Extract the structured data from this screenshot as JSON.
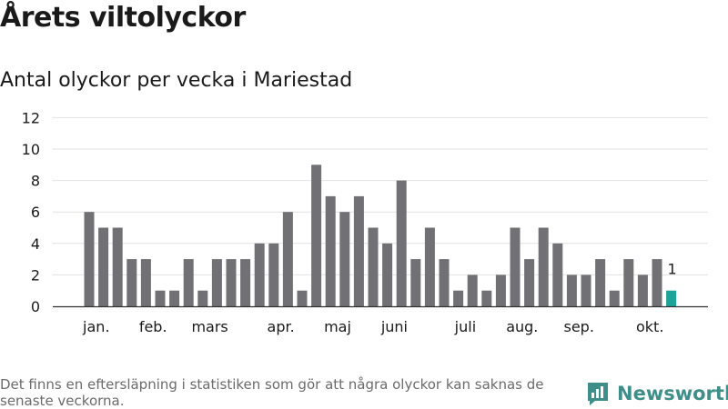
{
  "title": "Årets viltolyckor",
  "subtitle": "Antal olyckor per vecka i Mariestad",
  "footnote": "Det finns en eftersläpning i statistiken som gör att några olyckor kan saknas de senaste veckorna.",
  "brand": {
    "name": "Newsworthy",
    "color": "#3e8f89"
  },
  "colors": {
    "bar": "#717075",
    "highlight": "#1ea39a",
    "grid": "#e2e2e2",
    "axis": "#333333"
  },
  "chart_data": {
    "type": "bar",
    "title": "Antal olyckor per vecka i Mariestad",
    "xlabel": "",
    "ylabel": "",
    "ylim": [
      0,
      12
    ],
    "yticks": [
      0,
      2,
      4,
      6,
      8,
      10,
      12
    ],
    "weeks": [
      1,
      2,
      3,
      4,
      5,
      6,
      7,
      8,
      9,
      10,
      11,
      12,
      13,
      14,
      15,
      16,
      17,
      18,
      19,
      20,
      21,
      22,
      23,
      24,
      25,
      26,
      27,
      28,
      29,
      30,
      31,
      32,
      33,
      34,
      35,
      36,
      37,
      38,
      39,
      40,
      41,
      42
    ],
    "values": [
      6,
      5,
      5,
      3,
      3,
      1,
      1,
      3,
      1,
      3,
      3,
      3,
      4,
      4,
      6,
      1,
      9,
      7,
      6,
      7,
      5,
      4,
      8,
      3,
      5,
      3,
      1,
      2,
      1,
      2,
      5,
      3,
      5,
      4,
      2,
      2,
      3,
      1,
      3,
      2,
      3,
      1
    ],
    "highlight_index": 41,
    "highlight_label": "1",
    "month_labels": [
      {
        "label": "jan.",
        "week": 1.5
      },
      {
        "label": "feb.",
        "week": 5.5
      },
      {
        "label": "mars",
        "week": 9.5
      },
      {
        "label": "apr.",
        "week": 14.5
      },
      {
        "label": "maj",
        "week": 18.5
      },
      {
        "label": "juni",
        "week": 22.5
      },
      {
        "label": "juli",
        "week": 27.5
      },
      {
        "label": "aug.",
        "week": 31.5
      },
      {
        "label": "sep.",
        "week": 35.5
      },
      {
        "label": "okt.",
        "week": 40.5
      }
    ],
    "grid": true
  }
}
